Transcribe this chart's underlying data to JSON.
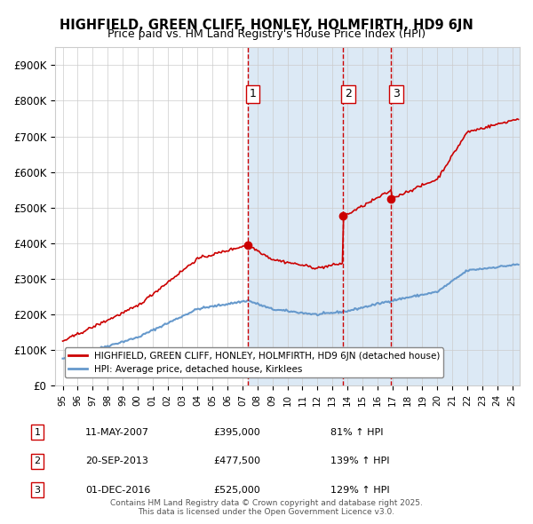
{
  "title1": "HIGHFIELD, GREEN CLIFF, HONLEY, HOLMFIRTH, HD9 6JN",
  "title2": "Price paid vs. HM Land Registry's House Price Index (HPI)",
  "legend_property": "HIGHFIELD, GREEN CLIFF, HONLEY, HOLMFIRTH, HD9 6JN (detached house)",
  "legend_hpi": "HPI: Average price, detached house, Kirklees",
  "footer": "Contains HM Land Registry data © Crown copyright and database right 2025.\nThis data is licensed under the Open Government Licence v3.0.",
  "purchases": [
    {
      "num": 1,
      "date": "11-MAY-2007",
      "date_x": 2007.36,
      "price": 395000,
      "pct": "81%",
      "dir": "↑"
    },
    {
      "num": 2,
      "date": "20-SEP-2013",
      "date_x": 2013.72,
      "price": 477500,
      "pct": "139%",
      "dir": "↑"
    },
    {
      "num": 3,
      "date": "01-DEC-2016",
      "date_x": 2016.92,
      "price": 525000,
      "pct": "129%",
      "dir": "↑"
    }
  ],
  "bg_shade_start": 2007.36,
  "bg_shade_end": 2025.5,
  "ylim": [
    0,
    950000
  ],
  "xlim": [
    1994.5,
    2025.5
  ],
  "yticks": [
    0,
    100000,
    200000,
    300000,
    400000,
    500000,
    600000,
    700000,
    800000,
    900000
  ],
  "ytick_labels": [
    "£0",
    "£100K",
    "£200K",
    "£300K",
    "£400K",
    "£500K",
    "£600K",
    "£700K",
    "£800K",
    "£900K"
  ],
  "xticks": [
    1995,
    1996,
    1997,
    1998,
    1999,
    2000,
    2001,
    2002,
    2003,
    2004,
    2005,
    2006,
    2007,
    2008,
    2009,
    2010,
    2011,
    2012,
    2013,
    2014,
    2015,
    2016,
    2017,
    2018,
    2019,
    2020,
    2021,
    2022,
    2023,
    2024,
    2025
  ],
  "xtick_labels": [
    "95",
    "96",
    "97",
    "98",
    "99",
    "00",
    "01",
    "02",
    "03",
    "04",
    "05",
    "06",
    "07",
    "08",
    "09",
    "10",
    "11",
    "12",
    "13",
    "14",
    "15",
    "16",
    "17",
    "18",
    "19",
    "20",
    "21",
    "22",
    "23",
    "24",
    "25"
  ],
  "property_color": "#cc0000",
  "hpi_color": "#6699cc",
  "shade_color": "#dce9f5",
  "grid_color": "#cccccc",
  "vline_color": "#cc0000",
  "marker_color": "#cc0000"
}
